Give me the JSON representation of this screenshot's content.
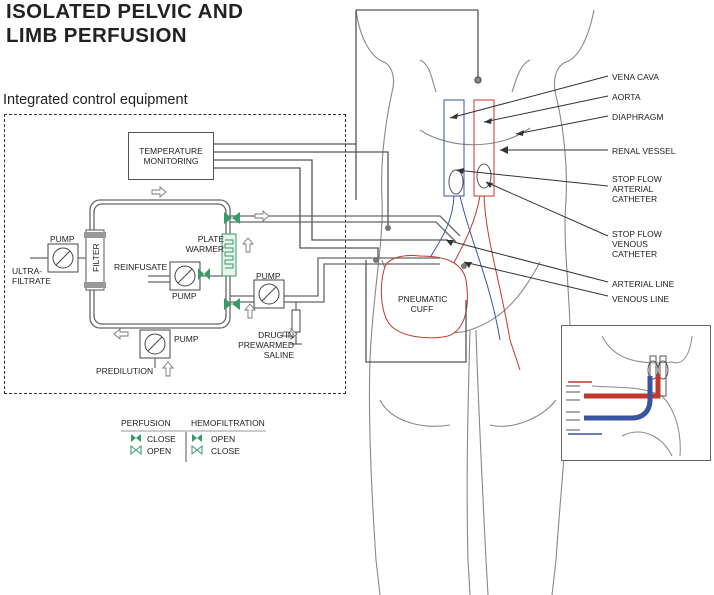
{
  "title_line1": "ISOLATED PELVIC AND",
  "title_line2": "LIMB PERFUSION",
  "subtitle": "Integrated control equipment",
  "equipment": {
    "temperature_monitoring": "TEMPERATURE MONITORING",
    "plate_warmer": "PLATE WARMER",
    "filter": "FILTER",
    "ultrafiltrate": "ULTRA- FILTRATE",
    "reinfusate": "REINFUSATE",
    "pump": "PUMP",
    "predilution": "PREDILUTION",
    "drug": "DRUG IN PREWARMED SALINE",
    "pneumatic_cuff": "PNEUMATIC CUFF"
  },
  "anatomy_labels": [
    "VENA CAVA",
    "AORTA",
    "DIAPHRAGM",
    "RENAL VESSEL",
    "STOP FLOW ARTERIAL CATHETER",
    "STOP FLOW VENOUS CATHETER",
    "ARTERIAL LINE",
    "VENOUS LINE"
  ],
  "legend": {
    "perfusion_header": "PERFUSION",
    "hemofiltration_header": "HEMOFILTRATION",
    "perfusion_close": "CLOSE",
    "perfusion_open": "OPEN",
    "hemo_open": "OPEN",
    "hemo_close": "CLOSE"
  },
  "colors": {
    "arterial": "#c0392b",
    "venous": "#3a55a0",
    "valve": "#3a9a6a",
    "line": "#555555"
  }
}
